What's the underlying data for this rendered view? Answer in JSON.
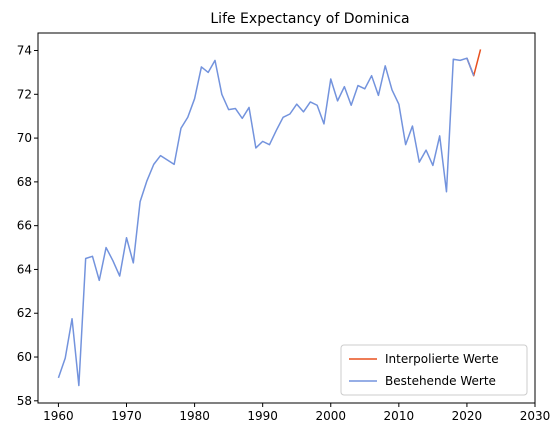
{
  "chart_data": {
    "type": "line",
    "title": "Life Expectancy of Dominica",
    "xlabel": "",
    "ylabel": "",
    "xlim": [
      1957.0,
      2030
    ],
    "ylim": [
      57.9,
      74.8
    ],
    "xticks": [
      1960,
      1970,
      1980,
      1990,
      2000,
      2010,
      2020,
      2030
    ],
    "yticks": [
      58,
      60,
      62,
      64,
      66,
      68,
      70,
      72,
      74
    ],
    "grid": false,
    "legend": "lower-right",
    "series": [
      {
        "name": "Interpolierte Werte",
        "color": "#e8501f",
        "x": [
          2020,
          2021,
          2022
        ],
        "y": [
          73.65,
          72.85,
          74.05
        ]
      },
      {
        "name": "Bestehende Werte",
        "color": "#7393dd",
        "x": [
          1960,
          1961,
          1962,
          1963,
          1964,
          1965,
          1966,
          1967,
          1968,
          1969,
          1970,
          1971,
          1972,
          1973,
          1974,
          1975,
          1976,
          1977,
          1978,
          1979,
          1980,
          1981,
          1982,
          1983,
          1984,
          1985,
          1986,
          1987,
          1988,
          1989,
          1990,
          1991,
          1992,
          1993,
          1994,
          1995,
          1996,
          1997,
          1998,
          1999,
          2000,
          2001,
          2002,
          2003,
          2004,
          2005,
          2006,
          2007,
          2008,
          2009,
          2010,
          2011,
          2012,
          2013,
          2014,
          2015,
          2016,
          2017,
          2018,
          2019,
          2020,
          2021
        ],
        "y": [
          59.05,
          59.95,
          61.75,
          58.7,
          64.5,
          64.6,
          63.5,
          65.0,
          64.4,
          63.7,
          65.45,
          64.3,
          67.1,
          68.05,
          68.8,
          69.2,
          69.0,
          68.8,
          70.45,
          70.95,
          71.8,
          73.25,
          73.0,
          73.55,
          72.0,
          71.3,
          71.35,
          70.9,
          71.4,
          69.55,
          69.85,
          69.7,
          70.35,
          70.95,
          71.1,
          71.55,
          71.2,
          71.65,
          71.5,
          70.65,
          72.7,
          71.7,
          72.35,
          71.5,
          72.4,
          72.25,
          72.85,
          71.95,
          73.3,
          72.2,
          71.55,
          69.7,
          70.55,
          68.9,
          69.45,
          68.75,
          70.1,
          67.55,
          73.6,
          73.55,
          73.65,
          72.85
        ]
      }
    ]
  }
}
